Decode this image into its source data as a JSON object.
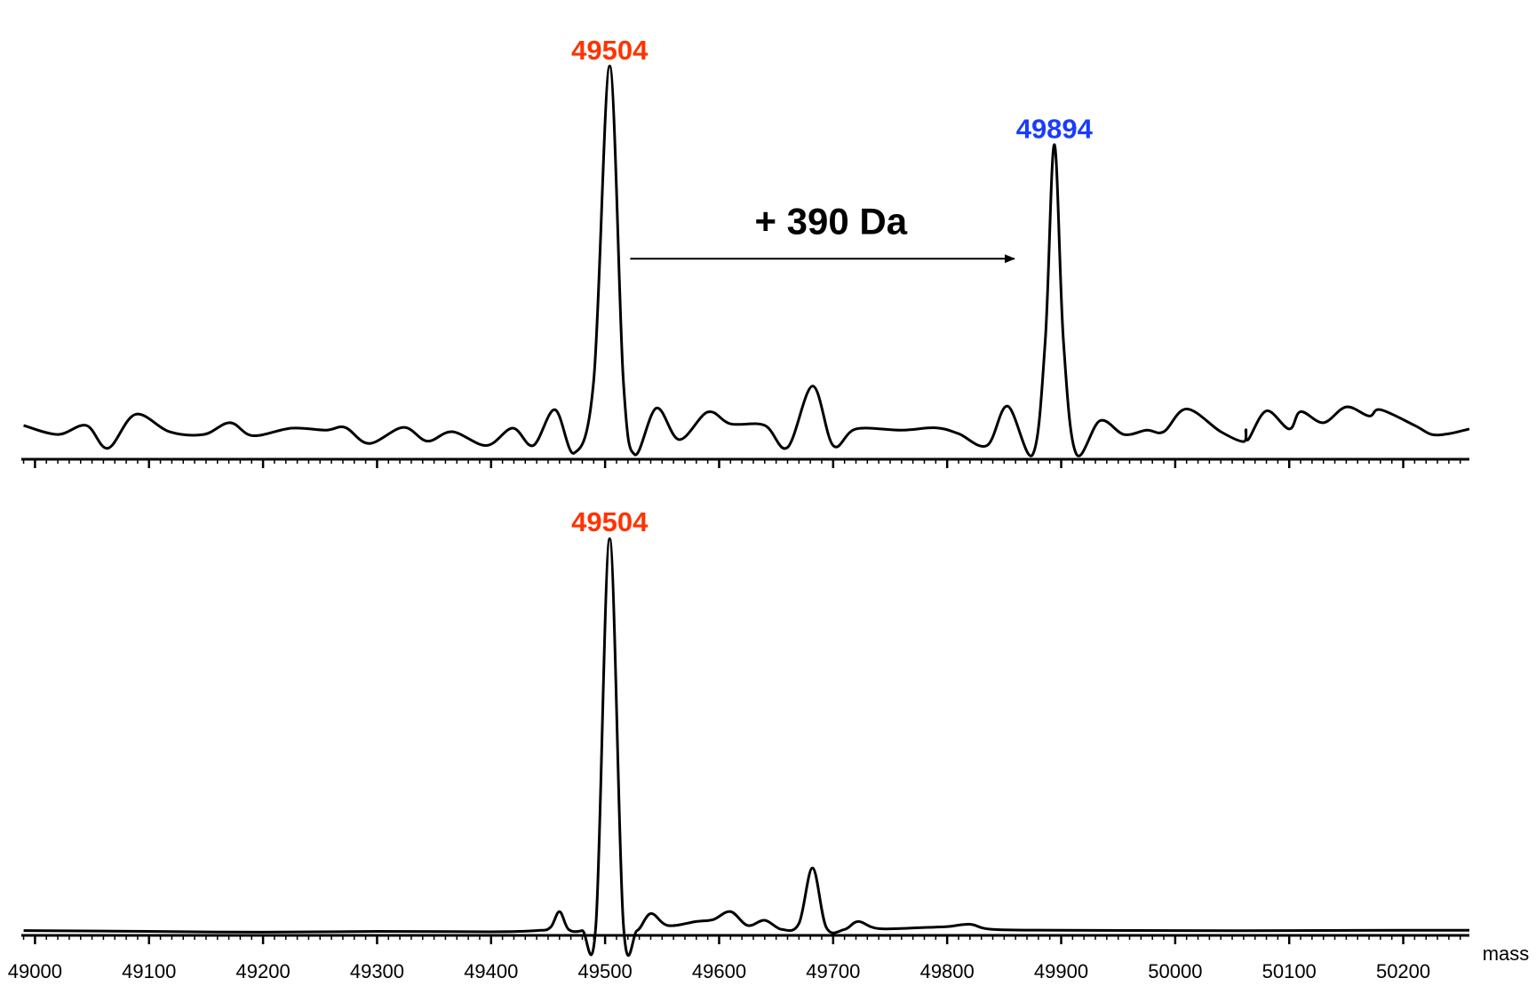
{
  "chart_data": [
    {
      "type": "line",
      "x": [
        48990,
        49020,
        49045,
        49064,
        49088,
        49118,
        49148,
        49171,
        49191,
        49225,
        49255,
        49272,
        49293,
        49323,
        49344,
        49366,
        49396,
        49419,
        49437,
        49456,
        49473,
        49490,
        49504,
        49516,
        49526,
        49545,
        49565,
        49590,
        49610,
        49640,
        49660,
        49682,
        49700,
        49720,
        49760,
        49790,
        49810,
        49835,
        49853,
        49875,
        49886,
        49894,
        49902,
        49913,
        49934,
        49955,
        49975,
        49990,
        50010,
        50040,
        50060,
        50062,
        50064,
        50080,
        50100,
        50110,
        50130,
        50150,
        50170,
        50180,
        50210,
        50225,
        50240,
        50258
      ],
      "series": [
        {
          "color": "#000000",
          "values": [
            8.6,
            6.3,
            8.6,
            2.8,
            11.4,
            7,
            6.3,
            9.3,
            6,
            7.9,
            7.4,
            8.1,
            4,
            8.1,
            4.6,
            7,
            3.5,
            7.9,
            3.5,
            12.6,
            1.6,
            20,
            100,
            20,
            1.2,
            13,
            5,
            12,
            9,
            8.6,
            3,
            18.6,
            3.5,
            7.7,
            7.4,
            8,
            6.5,
            3.5,
            13.5,
            1.2,
            30,
            80,
            30,
            1.5,
            9.8,
            6.3,
            7.4,
            7,
            12.8,
            7,
            4.5,
            7.5,
            5,
            12.3,
            7.7,
            12.1,
            9.3,
            13.3,
            11,
            12.6,
            8.6,
            6.3,
            6.5,
            7.7
          ]
        }
      ],
      "xlim": [
        48988,
        50258
      ],
      "ylim": [
        0,
        100
      ],
      "annotations": [
        {
          "text": "49504",
          "x": 49504,
          "y": 103.5,
          "color": "#ff3300"
        },
        {
          "text": "49894",
          "x": 49894,
          "y": 83.5,
          "color": "#1a3cff"
        },
        {
          "text": "+ 390 Da",
          "x": 49698,
          "y": 59.8,
          "arrow_from": 49522,
          "arrow_to": 49859,
          "arrow_y": 51
        }
      ]
    },
    {
      "type": "line",
      "x": [
        48990,
        49100,
        49200,
        49300,
        49400,
        49440,
        49452,
        49460,
        49468,
        49480,
        49492,
        49504,
        49516,
        49528,
        49540,
        49555,
        49580,
        49595,
        49610,
        49625,
        49640,
        49655,
        49670,
        49682,
        49694,
        49710,
        49722,
        49740,
        49780,
        49800,
        49820,
        49840,
        49900,
        50000,
        50100,
        50200,
        50258
      ],
      "series": [
        {
          "color": "#000000",
          "values": [
            1.2,
            1,
            0.8,
            1,
            0.9,
            1.2,
            2,
            6,
            1.5,
            1.2,
            3,
            100,
            3,
            1.2,
            5.5,
            2.5,
            3.5,
            4,
            6,
            2.5,
            3.8,
            1.5,
            3,
            17,
            2,
            1.5,
            3.5,
            1.7,
            2,
            2.2,
            2.8,
            1.5,
            1.3,
            1.2,
            1.2,
            1.3,
            1.3
          ]
        }
      ],
      "xlim": [
        48988,
        50258
      ],
      "ylim": [
        0,
        100
      ],
      "xticks": [
        49000,
        49100,
        49200,
        49300,
        49400,
        49500,
        49600,
        49700,
        49800,
        49900,
        50000,
        50100,
        50200
      ],
      "xlabel": "mass",
      "annotations": [
        {
          "text": "49504",
          "x": 49504,
          "y": 103.7,
          "color": "#ff3300"
        }
      ]
    }
  ]
}
